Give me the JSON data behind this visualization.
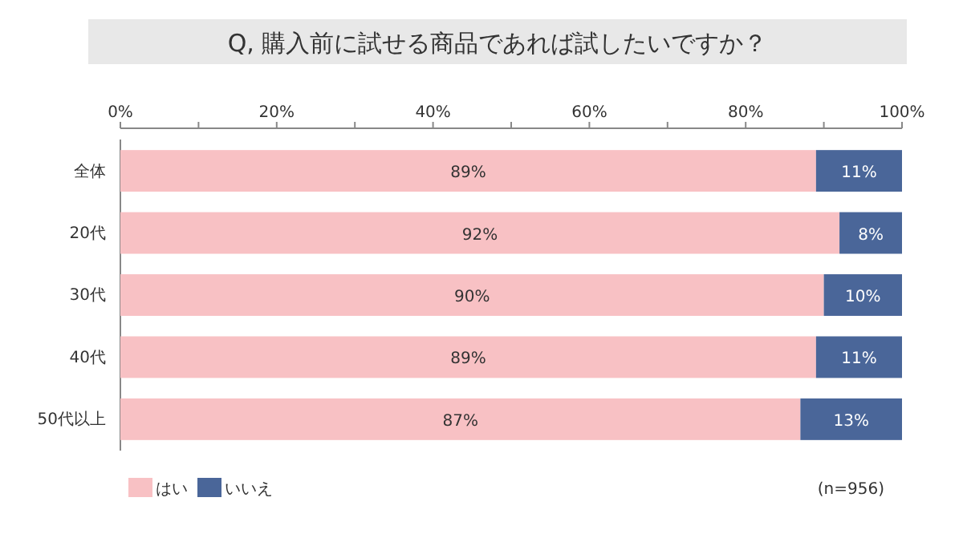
{
  "chart_data": {
    "type": "bar",
    "orientation": "horizontal",
    "stacked": true,
    "title": "Q, 購入前に試せる商品であれば試したいですか？",
    "categories": [
      "全体",
      "20代",
      "30代",
      "40代",
      "50代以上"
    ],
    "series": [
      {
        "name": "はい",
        "color": "#f8c1c4",
        "values": [
          89,
          92,
          90,
          89,
          87
        ],
        "value_labels": [
          "89%",
          "92%",
          "90%",
          "89%",
          "87%"
        ]
      },
      {
        "name": "いいえ",
        "color": "#4a6699",
        "values": [
          11,
          8,
          10,
          11,
          13
        ],
        "value_labels": [
          "11%",
          "8%",
          "10%",
          "11%",
          "13%"
        ]
      }
    ],
    "xlim": [
      0,
      100
    ],
    "xticks": [
      {
        "value": 0,
        "label": "0%"
      },
      {
        "value": 10,
        "label": null
      },
      {
        "value": 20,
        "label": "20%"
      },
      {
        "value": 30,
        "label": null
      },
      {
        "value": 40,
        "label": "40%"
      },
      {
        "value": 50,
        "label": null
      },
      {
        "value": 60,
        "label": "60%"
      },
      {
        "value": 70,
        "label": null
      },
      {
        "value": 80,
        "label": "80%"
      },
      {
        "value": 90,
        "label": null
      },
      {
        "value": 100,
        "label": "100%"
      }
    ],
    "legend": "bottom left",
    "grid": false,
    "annotations": [
      "(n=956)"
    ]
  }
}
